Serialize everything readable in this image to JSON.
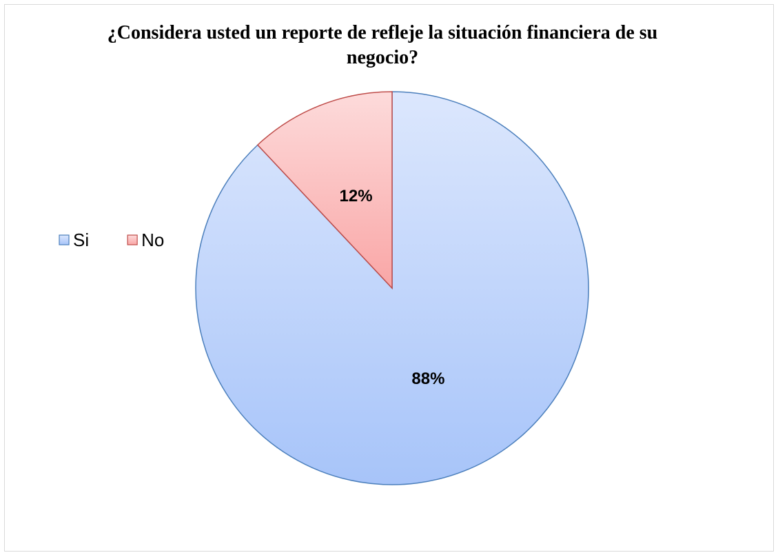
{
  "chart_data": {
    "type": "pie",
    "title": "¿Considera usted un reporte de refleje la situación financiera de su negocio?",
    "categories": [
      "Si",
      "No"
    ],
    "values": [
      88,
      12
    ],
    "value_labels": [
      "88%",
      "12%"
    ],
    "colors": [
      "#a7c4f9",
      "#f9a6a6"
    ],
    "edge_colors": [
      "#4a7ebb",
      "#be4b48"
    ],
    "start_angle": 0,
    "direction": "clockwise",
    "legend": "left"
  }
}
